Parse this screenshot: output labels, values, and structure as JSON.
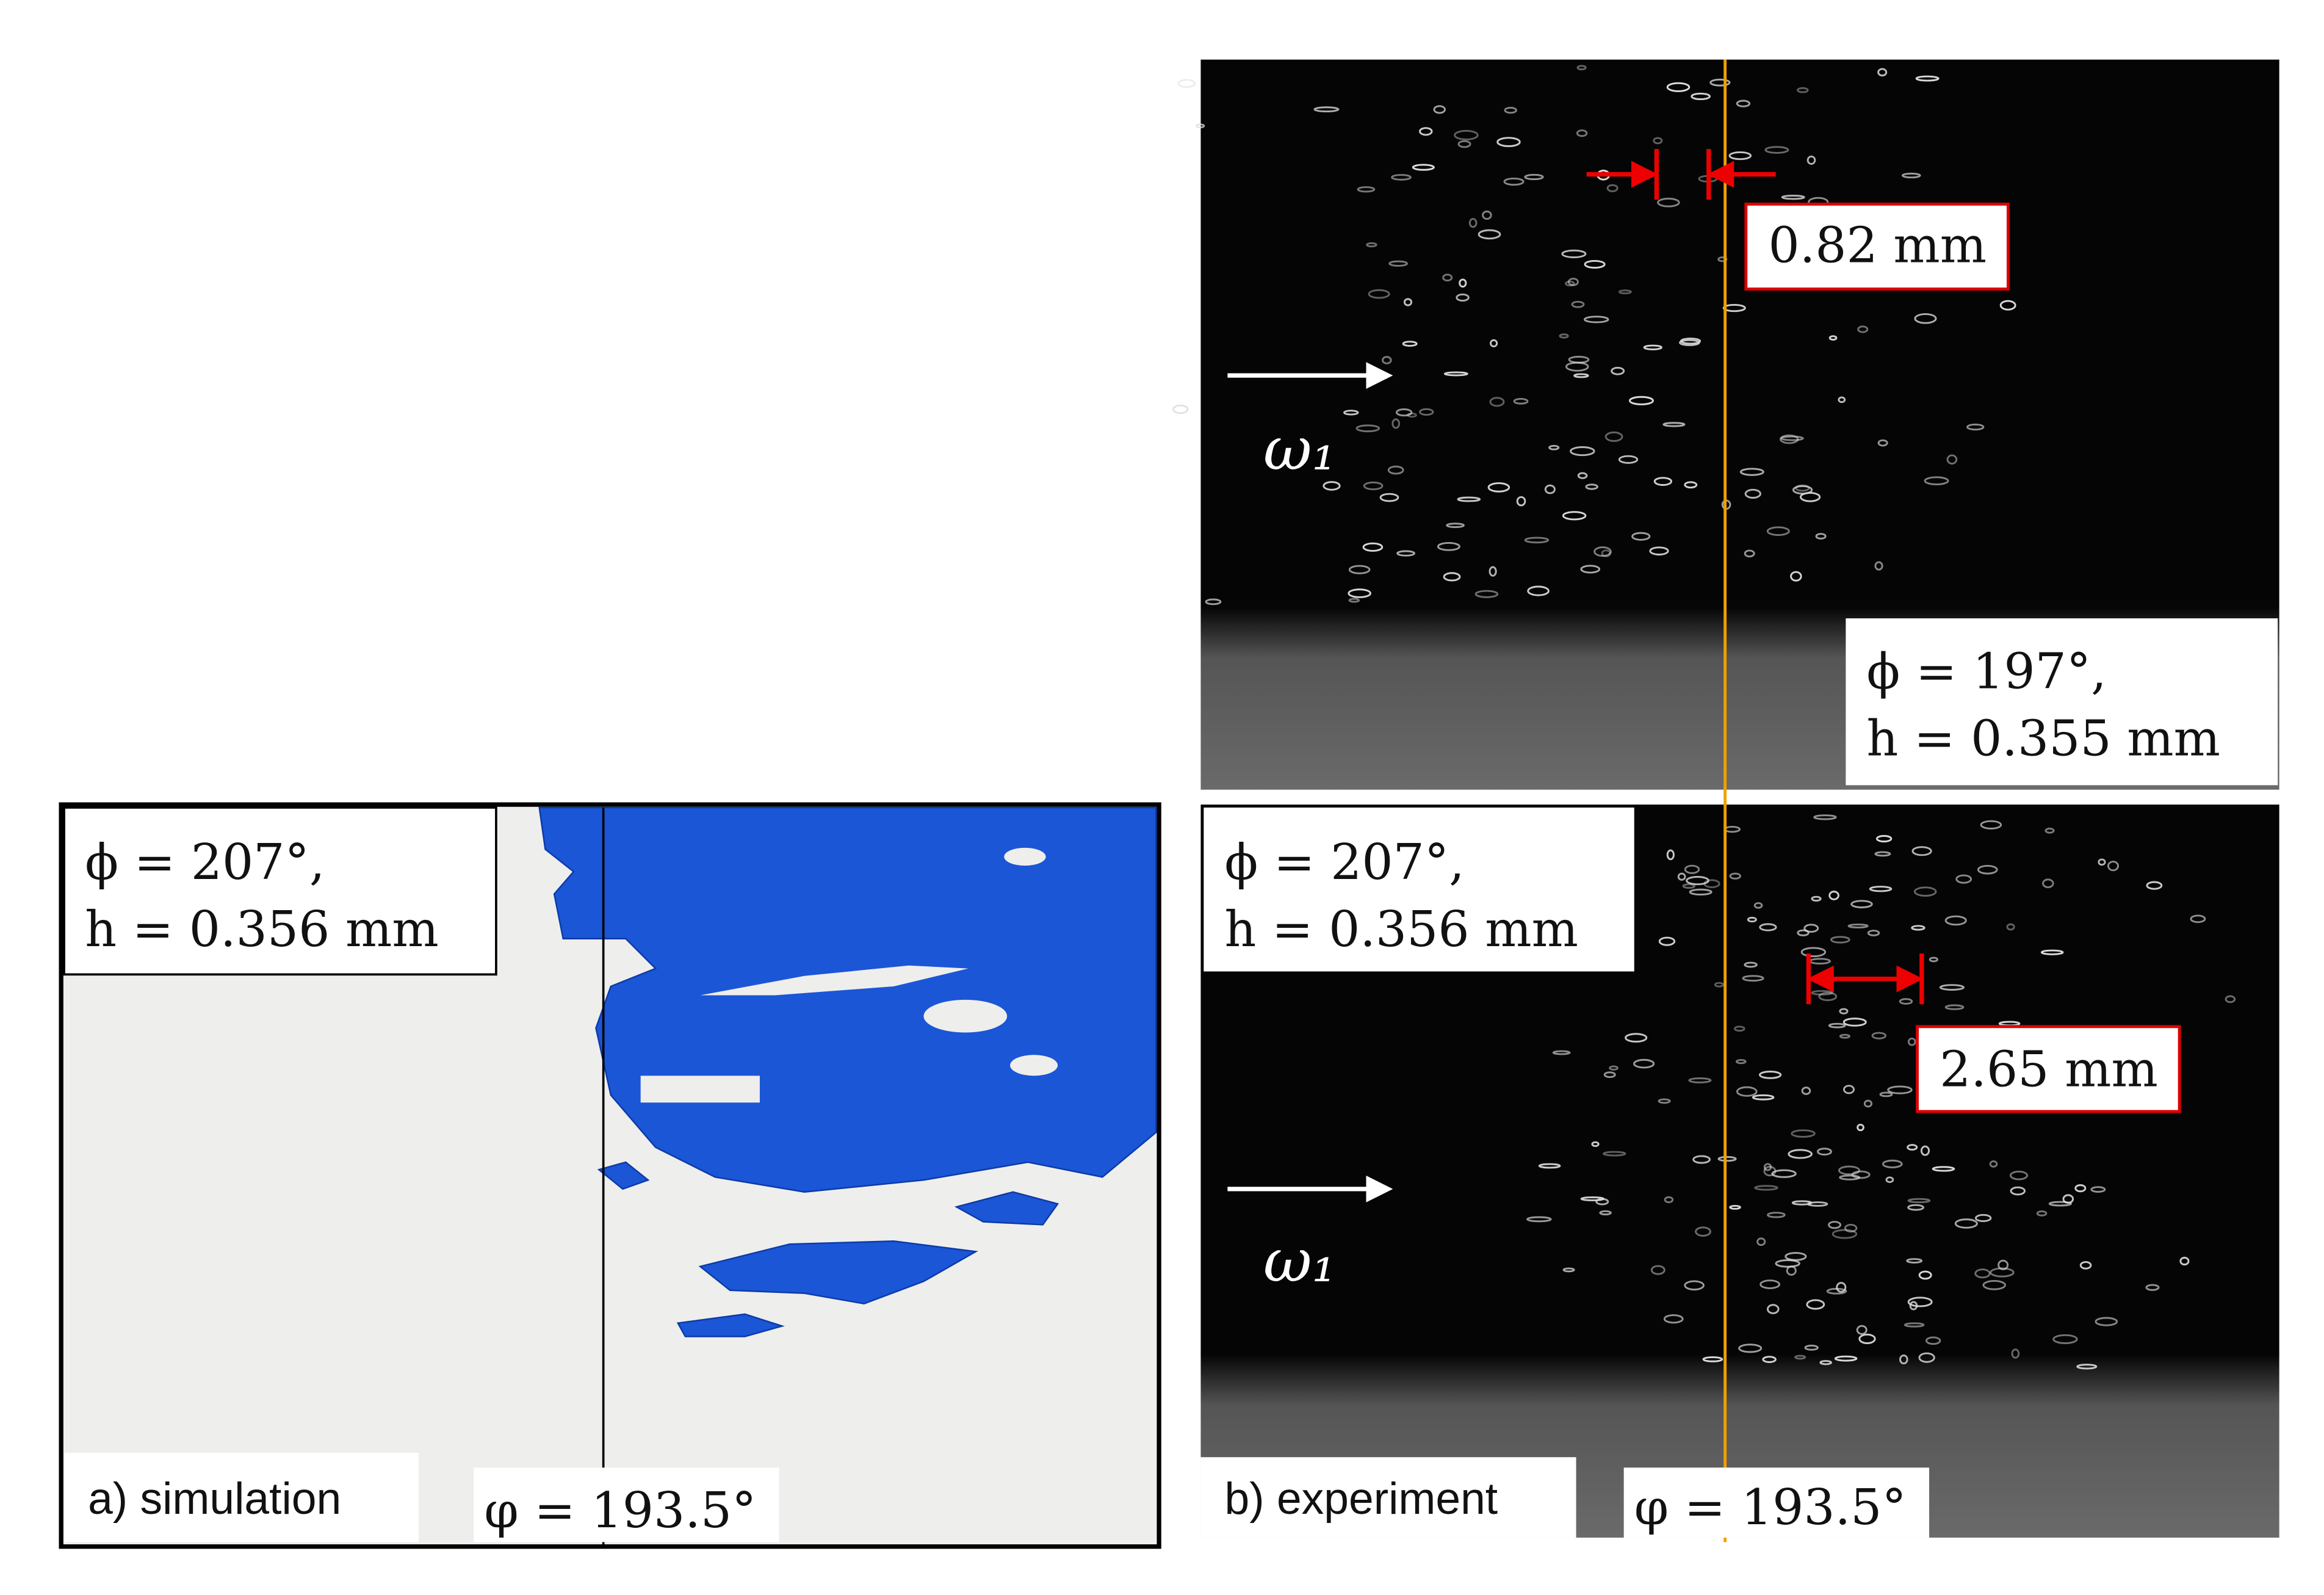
{
  "panel_a": {
    "annotation": [
      "ϕ = 207°,",
      "h = 0.356 mm"
    ],
    "label": "a) simulation",
    "angle": "φ = 193.5°"
  },
  "panel_b_top": {
    "annotation": [
      "ϕ = 197°,",
      "h = 0.355 mm"
    ],
    "measurement": "0.82 mm",
    "rotation": "ω₁"
  },
  "panel_b_bottom": {
    "annotation": [
      "ϕ = 207°,",
      "h = 0.356 mm"
    ],
    "measurement": "2.65 mm",
    "rotation": "ω₁",
    "label": "b) experiment",
    "angle": "φ = 193.5°"
  }
}
